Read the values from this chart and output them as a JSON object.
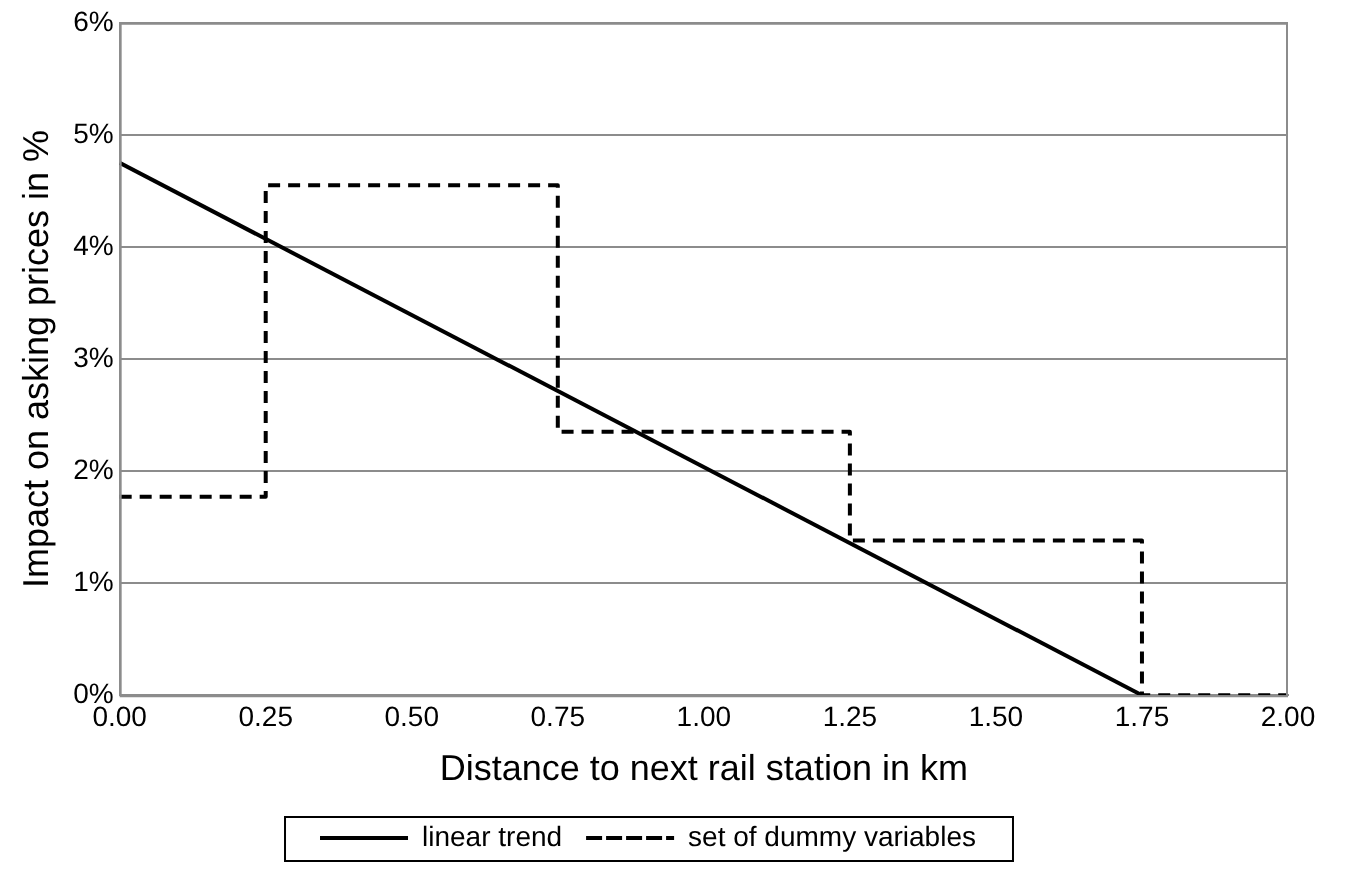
{
  "chart_data": {
    "type": "line",
    "xlabel": "Distance to next rail station in km",
    "ylabel": "Impact on asking prices in %",
    "xlim": [
      0,
      2
    ],
    "xticks": [
      {
        "value": 0,
        "label": "0.00"
      },
      {
        "value": 0.25,
        "label": "0.25"
      },
      {
        "value": 0.5,
        "label": "0.50"
      },
      {
        "value": 0.75,
        "label": "0.75"
      },
      {
        "value": 1,
        "label": "1.00"
      },
      {
        "value": 1.25,
        "label": "1.25"
      },
      {
        "value": 1.5,
        "label": "1.50"
      },
      {
        "value": 1.75,
        "label": "1.75"
      },
      {
        "value": 2,
        "label": "2.00"
      }
    ],
    "ylim": [
      0,
      6
    ],
    "yticks": [
      {
        "value": 0,
        "label": "0%"
      },
      {
        "value": 1,
        "label": "1%"
      },
      {
        "value": 2,
        "label": "2%"
      },
      {
        "value": 3,
        "label": "3%"
      },
      {
        "value": 4,
        "label": "4%"
      },
      {
        "value": 5,
        "label": "5%"
      },
      {
        "value": 6,
        "label": "6%"
      }
    ],
    "grid": "y",
    "legend": "bottom",
    "marker": "none",
    "series": [
      {
        "name": "linear trend",
        "type": "line",
        "color": "#000000",
        "line_style": "solid",
        "x": [
          0,
          1.75
        ],
        "values": [
          4.75,
          0
        ]
      },
      {
        "name": "set of dummy variables",
        "type": "step",
        "color": "#000000",
        "line_style": "dashed",
        "x": [
          0,
          0.25,
          0.75,
          1.25,
          1.75,
          2
        ],
        "values": [
          1.77,
          4.55,
          2.35,
          1.38,
          0,
          0
        ]
      }
    ]
  }
}
